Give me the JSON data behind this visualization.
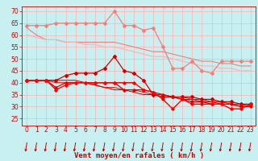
{
  "x": [
    0,
    1,
    2,
    3,
    4,
    5,
    6,
    7,
    8,
    9,
    10,
    11,
    12,
    13,
    14,
    15,
    16,
    17,
    18,
    19,
    20,
    21,
    22,
    23
  ],
  "series": [
    {
      "name": "rafales_high_light",
      "color": "#f08080",
      "linewidth": 0.9,
      "marker": "D",
      "markersize": 2.0,
      "y": [
        64,
        64,
        64,
        65,
        65,
        65,
        65,
        65,
        65,
        70,
        64,
        64,
        62,
        63,
        55,
        46,
        46,
        49,
        45,
        44,
        49,
        49,
        49,
        49
      ]
    },
    {
      "name": "rafales_mid_light",
      "color": "#f08080",
      "linewidth": 0.8,
      "marker": null,
      "markersize": 0,
      "y": [
        63,
        60,
        58,
        58,
        57,
        57,
        57,
        57,
        57,
        57,
        56,
        55,
        54,
        53,
        53,
        52,
        51,
        50,
        49,
        49,
        48,
        48,
        47,
        47
      ]
    },
    {
      "name": "vent_high_light",
      "color": "#ffb0b0",
      "linewidth": 0.8,
      "marker": null,
      "markersize": 0,
      "y": [
        60,
        59,
        58,
        58,
        57,
        57,
        56,
        56,
        55,
        55,
        54,
        53,
        52,
        51,
        51,
        50,
        49,
        48,
        47,
        47,
        46,
        46,
        45,
        45
      ]
    },
    {
      "name": "rafales_dark",
      "color": "#cc0000",
      "linewidth": 0.9,
      "marker": "D",
      "markersize": 2.0,
      "y": [
        41,
        41,
        41,
        41,
        43,
        44,
        44,
        44,
        46,
        51,
        45,
        44,
        41,
        35,
        34,
        34,
        34,
        34,
        33,
        33,
        32,
        32,
        31,
        31
      ]
    },
    {
      "name": "vent_dark1",
      "color": "#dd0000",
      "linewidth": 0.9,
      "marker": "D",
      "markersize": 1.8,
      "y": [
        41,
        41,
        41,
        38,
        40,
        40,
        40,
        40,
        40,
        40,
        37,
        37,
        37,
        36,
        35,
        34,
        33,
        32,
        32,
        31,
        31,
        31,
        30,
        30
      ]
    },
    {
      "name": "vent_dark2",
      "color": "#ff0000",
      "linewidth": 1.0,
      "marker": "D",
      "markersize": 1.8,
      "y": [
        41,
        41,
        41,
        37,
        39,
        40,
        40,
        40,
        40,
        40,
        40,
        40,
        37,
        36,
        33,
        29,
        33,
        31,
        31,
        31,
        31,
        29,
        29,
        31
      ]
    },
    {
      "name": "vent_dark3",
      "color": "#bb0000",
      "linewidth": 0.7,
      "marker": null,
      "markersize": 0,
      "y": [
        41,
        41,
        41,
        41,
        41,
        41,
        40,
        39,
        38,
        37,
        37,
        36,
        35,
        35,
        34,
        34,
        33,
        33,
        32,
        32,
        31,
        31,
        30,
        30
      ]
    },
    {
      "name": "vent_dark4",
      "color": "#ee0000",
      "linewidth": 0.7,
      "marker": null,
      "markersize": 0,
      "y": [
        41,
        41,
        41,
        40,
        40,
        40,
        40,
        39,
        38,
        38,
        37,
        37,
        36,
        35,
        35,
        34,
        34,
        33,
        33,
        32,
        32,
        31,
        31,
        30
      ]
    }
  ],
  "xlabel": "Vent moyen/en rafales ( km/h )",
  "ylabel_ticks": [
    25,
    30,
    35,
    40,
    45,
    50,
    55,
    60,
    65,
    70
  ],
  "ylim": [
    22,
    72
  ],
  "xlim": [
    -0.5,
    23.5
  ],
  "bg_color": "#c8f0f0",
  "grid_color": "#ffb0b0",
  "tick_color": "#cc0000",
  "xlabel_color": "#cc0000",
  "arrow_color": "#cc0000",
  "xlabel_fontsize": 6.5,
  "tick_fontsize": 5.5,
  "figsize": [
    3.2,
    2.0
  ],
  "dpi": 100
}
